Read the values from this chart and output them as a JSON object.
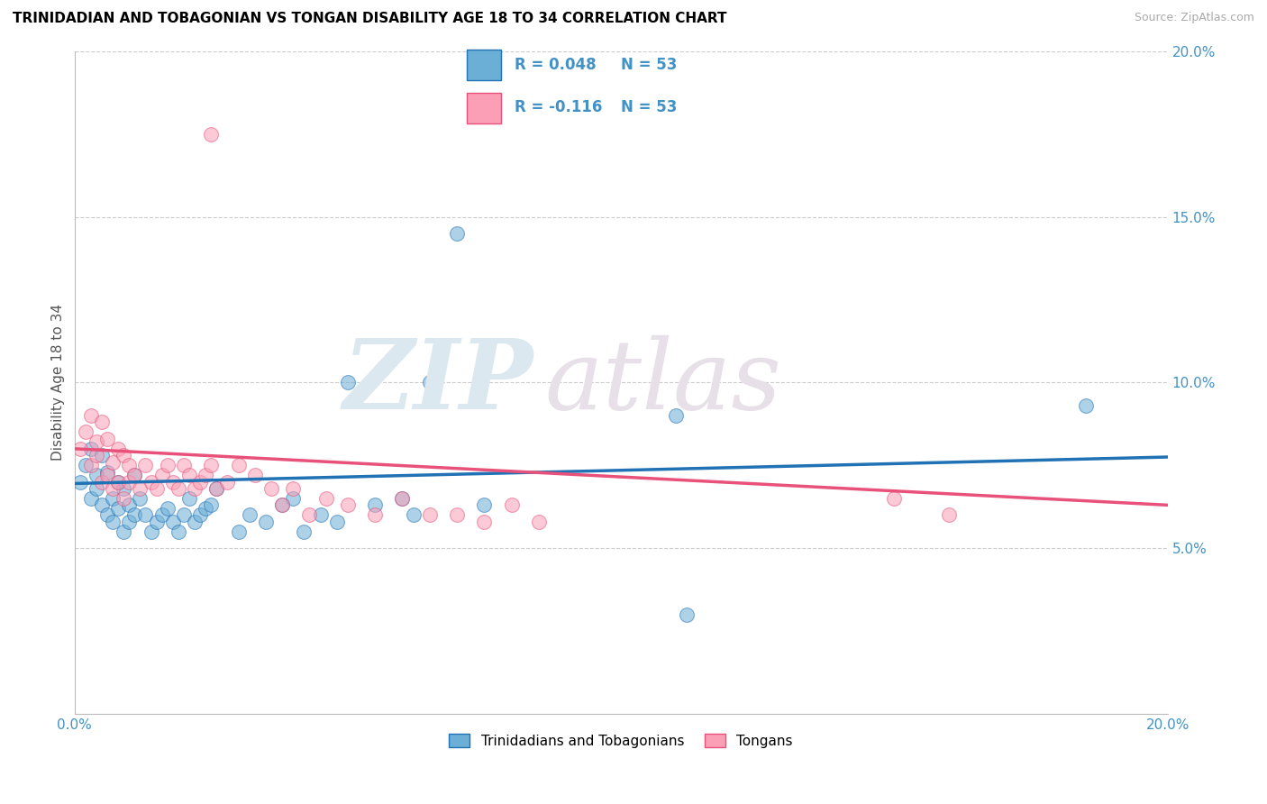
{
  "title": "TRINIDADIAN AND TOBAGONIAN VS TONGAN DISABILITY AGE 18 TO 34 CORRELATION CHART",
  "source": "Source: ZipAtlas.com",
  "ylabel": "Disability Age 18 to 34",
  "legend_label1": "Trinidadians and Tobagonians",
  "legend_label2": "Tongans",
  "color_blue": "#6baed6",
  "color_pink": "#fa9fb5",
  "color_blue_line": "#2171b5",
  "color_pink_line": "#e8527a",
  "color_legend_r": "#4292c6",
  "xlim": [
    0.0,
    0.2
  ],
  "ylim": [
    0.0,
    0.2
  ],
  "tri_x": [
    0.001,
    0.002,
    0.003,
    0.003,
    0.004,
    0.004,
    0.005,
    0.005,
    0.006,
    0.006,
    0.007,
    0.007,
    0.008,
    0.008,
    0.009,
    0.009,
    0.01,
    0.01,
    0.011,
    0.011,
    0.012,
    0.013,
    0.014,
    0.015,
    0.016,
    0.017,
    0.018,
    0.019,
    0.02,
    0.021,
    0.022,
    0.023,
    0.024,
    0.025,
    0.026,
    0.03,
    0.032,
    0.035,
    0.038,
    0.04,
    0.042,
    0.045,
    0.048,
    0.05,
    0.055,
    0.06,
    0.062,
    0.065,
    0.07,
    0.075,
    0.11,
    0.185,
    0.112
  ],
  "tri_y": [
    0.07,
    0.075,
    0.065,
    0.08,
    0.068,
    0.072,
    0.063,
    0.078,
    0.06,
    0.073,
    0.058,
    0.065,
    0.062,
    0.07,
    0.055,
    0.068,
    0.058,
    0.063,
    0.06,
    0.072,
    0.065,
    0.06,
    0.055,
    0.058,
    0.06,
    0.062,
    0.058,
    0.055,
    0.06,
    0.065,
    0.058,
    0.06,
    0.062,
    0.063,
    0.068,
    0.055,
    0.06,
    0.058,
    0.063,
    0.065,
    0.055,
    0.06,
    0.058,
    0.1,
    0.063,
    0.065,
    0.06,
    0.1,
    0.145,
    0.063,
    0.09,
    0.093,
    0.03
  ],
  "ton_x": [
    0.001,
    0.002,
    0.003,
    0.003,
    0.004,
    0.004,
    0.005,
    0.005,
    0.006,
    0.006,
    0.007,
    0.007,
    0.008,
    0.008,
    0.009,
    0.009,
    0.01,
    0.01,
    0.011,
    0.012,
    0.013,
    0.014,
    0.015,
    0.016,
    0.017,
    0.018,
    0.019,
    0.02,
    0.021,
    0.022,
    0.023,
    0.024,
    0.025,
    0.026,
    0.028,
    0.03,
    0.033,
    0.036,
    0.038,
    0.04,
    0.043,
    0.046,
    0.05,
    0.055,
    0.06,
    0.065,
    0.07,
    0.075,
    0.08,
    0.085,
    0.15,
    0.16,
    0.025
  ],
  "ton_y": [
    0.08,
    0.085,
    0.075,
    0.09,
    0.078,
    0.082,
    0.07,
    0.088,
    0.072,
    0.083,
    0.068,
    0.076,
    0.07,
    0.08,
    0.065,
    0.078,
    0.07,
    0.075,
    0.072,
    0.068,
    0.075,
    0.07,
    0.068,
    0.072,
    0.075,
    0.07,
    0.068,
    0.075,
    0.072,
    0.068,
    0.07,
    0.072,
    0.075,
    0.068,
    0.07,
    0.075,
    0.072,
    0.068,
    0.063,
    0.068,
    0.06,
    0.065,
    0.063,
    0.06,
    0.065,
    0.06,
    0.06,
    0.058,
    0.063,
    0.058,
    0.065,
    0.06,
    0.175
  ],
  "tri_line_x": [
    0.0,
    0.2
  ],
  "tri_line_y": [
    0.0695,
    0.0775
  ],
  "ton_line_x": [
    0.0,
    0.2
  ],
  "ton_line_y": [
    0.08,
    0.063
  ]
}
